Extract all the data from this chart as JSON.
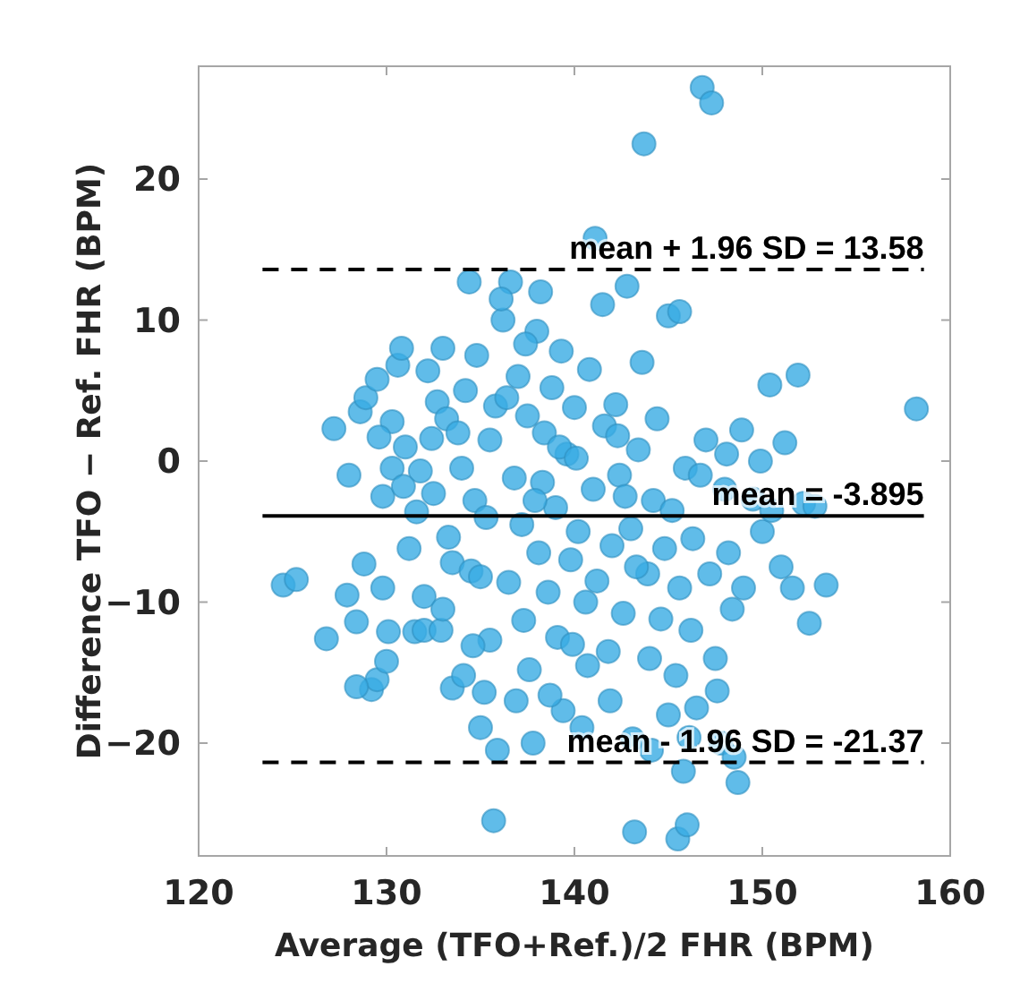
{
  "chart_data": {
    "type": "scatter",
    "xlabel": "Average (TFO+Ref.)/2 FHR (BPM)",
    "ylabel": "Difference TFO − Ref. FHR (BPM)",
    "xlim": [
      120,
      160
    ],
    "xticks": [
      120,
      130,
      140,
      150,
      160
    ],
    "ylim": [
      -28,
      28
    ],
    "yticks": [
      {
        "value": -20,
        "label": "−20"
      },
      {
        "value": -10,
        "label": "−10"
      },
      0,
      10,
      20
    ],
    "grid": false,
    "marker": "circle",
    "ref_lines": [
      {
        "axis": "y",
        "value": 13.58,
        "label": "mean + 1.96 SD = 13.58",
        "line_style": "dashed",
        "color": "#000000"
      },
      {
        "axis": "y",
        "value": -3.895,
        "label": "mean = -3.895",
        "line_style": "solid",
        "color": "#000000"
      },
      {
        "axis": "y",
        "value": -21.37,
        "label": "mean - 1.96 SD = -21.37",
        "line_style": "dashed",
        "color": "#000000"
      }
    ],
    "series": [
      {
        "color": "#38abe4",
        "x": [
          124.5,
          125.2,
          126.8,
          127.2,
          127.9,
          128.4,
          128.6,
          128.8,
          129.2,
          129.5,
          129.8,
          128.4,
          128.0,
          128.9,
          129.5,
          129.8,
          130.0,
          130.1,
          130.3,
          130.6,
          130.8,
          130.3,
          129.6,
          131.2,
          131.5,
          131.8,
          132.0,
          132.2,
          132.5,
          132.7,
          132.9,
          133.0,
          133.2,
          133.3,
          133.5,
          133.5,
          134.0,
          134.1,
          134.2,
          134.4,
          134.5,
          134.7,
          134.8,
          135.0,
          135.0,
          135.3,
          135.5,
          135.5,
          135.7,
          135.8,
          135.9,
          131.0,
          132.0,
          133.8,
          131.6,
          130.9,
          132.4,
          133.0,
          134.6,
          135.2,
          136.2,
          136.6,
          136.1,
          136.5,
          136.8,
          137.0,
          137.2,
          137.3,
          137.5,
          137.6,
          137.8,
          138.0,
          138.1,
          138.3,
          138.4,
          138.6,
          138.8,
          139.0,
          139.1,
          139.3,
          139.4,
          139.6,
          139.8,
          140.0,
          136.9,
          137.4,
          138.7,
          139.9,
          136.4,
          138.2,
          137.9,
          139.2,
          140.2,
          140.4,
          140.6,
          140.8,
          141.0,
          141.1,
          141.2,
          141.5,
          141.6,
          141.8,
          142.0,
          142.2,
          142.4,
          142.6,
          142.8,
          143.0,
          143.1,
          143.2,
          143.4,
          143.6,
          143.7,
          143.9,
          144.0,
          144.2,
          144.4,
          144.6,
          144.8,
          145.0,
          145.0,
          145.6,
          140.7,
          141.9,
          142.3,
          143.3,
          144.1,
          140.1,
          142.7,
          145.2,
          145.4,
          145.5,
          145.6,
          145.8,
          145.9,
          146.0,
          146.2,
          146.3,
          146.5,
          146.8,
          147.0,
          147.3,
          147.2,
          147.5,
          147.8,
          148.0,
          148.2,
          148.4,
          148.5,
          148.7,
          148.9,
          149.0,
          149.5,
          149.9,
          150.4,
          150.0,
          146.7,
          147.6,
          148.1,
          146.1,
          150.5,
          151.0,
          151.2,
          151.9,
          152.2,
          152.5,
          153.4,
          152.8,
          158.2,
          151.6
        ],
        "values": [
          -8.8,
          -8.4,
          -12.6,
          2.3,
          -9.5,
          -11.4,
          3.5,
          -7.3,
          -16.2,
          -15.5,
          -9.0,
          -16.0,
          -1.0,
          4.5,
          5.8,
          -2.5,
          -14.2,
          -12.1,
          -0.5,
          6.8,
          8.0,
          2.8,
          1.7,
          -6.2,
          -12.1,
          -0.7,
          -12.0,
          6.4,
          -2.3,
          4.2,
          -12.0,
          8.0,
          3.0,
          -5.4,
          -7.2,
          -16.1,
          -0.5,
          -15.2,
          5.0,
          12.7,
          -7.8,
          -2.8,
          7.5,
          -8.2,
          -18.9,
          -4.0,
          1.5,
          -12.7,
          -25.5,
          3.9,
          -20.5,
          1.0,
          -9.6,
          2.0,
          -3.6,
          -1.8,
          1.6,
          -10.5,
          -13.1,
          -16.4,
          10.0,
          12.7,
          11.5,
          -8.6,
          -1.2,
          6.0,
          -4.5,
          -11.3,
          3.2,
          -14.8,
          -20.0,
          9.2,
          -6.5,
          -1.5,
          2.0,
          -9.3,
          5.2,
          -3.3,
          -12.5,
          7.8,
          -17.7,
          0.5,
          -7.0,
          3.8,
          -17.0,
          8.3,
          -16.6,
          -13.0,
          4.5,
          12.0,
          -2.8,
          1.0,
          -5.0,
          -18.9,
          -10.0,
          6.5,
          -2.0,
          15.8,
          -8.5,
          11.1,
          2.5,
          -13.5,
          -6.0,
          4.0,
          -1.0,
          -10.8,
          12.4,
          -4.8,
          -19.7,
          -26.3,
          0.8,
          7.0,
          22.5,
          -8.0,
          -14.0,
          -2.8,
          3.0,
          -11.2,
          -6.2,
          10.3,
          -18.0,
          10.6,
          -14.5,
          -17.0,
          1.8,
          -7.5,
          -20.5,
          0.2,
          -2.5,
          -3.5,
          -15.2,
          -26.8,
          -9.0,
          -22.0,
          -0.5,
          -25.8,
          -12.0,
          -5.5,
          -17.5,
          26.5,
          1.5,
          25.4,
          -8.0,
          -14.0,
          -20.0,
          -2.0,
          -6.5,
          -10.5,
          -21.0,
          -22.8,
          2.2,
          -9.0,
          -2.7,
          0.0,
          5.4,
          -5.0,
          -1.0,
          -16.3,
          0.5,
          -19.6,
          -3.5,
          -7.5,
          1.3,
          6.1,
          -3.0,
          -11.5,
          -8.8,
          -3.2,
          3.7,
          -9.0
        ]
      }
    ]
  }
}
